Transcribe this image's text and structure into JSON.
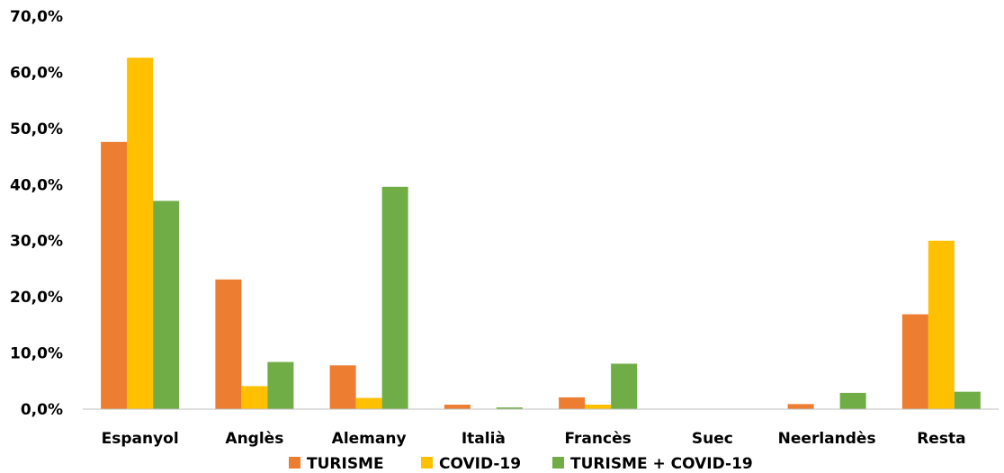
{
  "chart_data": {
    "type": "bar",
    "title": "",
    "xlabel": "",
    "ylabel": "",
    "ylim": [
      0,
      70
    ],
    "y_ticks": [
      "0,0%",
      "10,0%",
      "20,0%",
      "30,0%",
      "40,0%",
      "50,0%",
      "60,0%",
      "70,0%"
    ],
    "categories": [
      "Espanyol",
      "Anglès",
      "Alemany",
      "Italià",
      "Francès",
      "Suec",
      "Neerlandès",
      "Resta"
    ],
    "series": [
      {
        "name": "TURISME",
        "color": "#ED7D31",
        "values": [
          47.6,
          23.1,
          7.8,
          0.8,
          2.1,
          0.0,
          0.9,
          16.9
        ]
      },
      {
        "name": "COVID-19",
        "color": "#FFC000",
        "values": [
          62.6,
          4.1,
          2.0,
          0.0,
          0.8,
          0.0,
          0.0,
          30.0
        ]
      },
      {
        "name": "TURISME + COVID-19",
        "color": "#70AD47",
        "values": [
          37.1,
          8.4,
          39.6,
          0.3,
          8.1,
          0.0,
          2.9,
          3.1
        ]
      }
    ],
    "grid": false,
    "legend_position": "bottom"
  }
}
